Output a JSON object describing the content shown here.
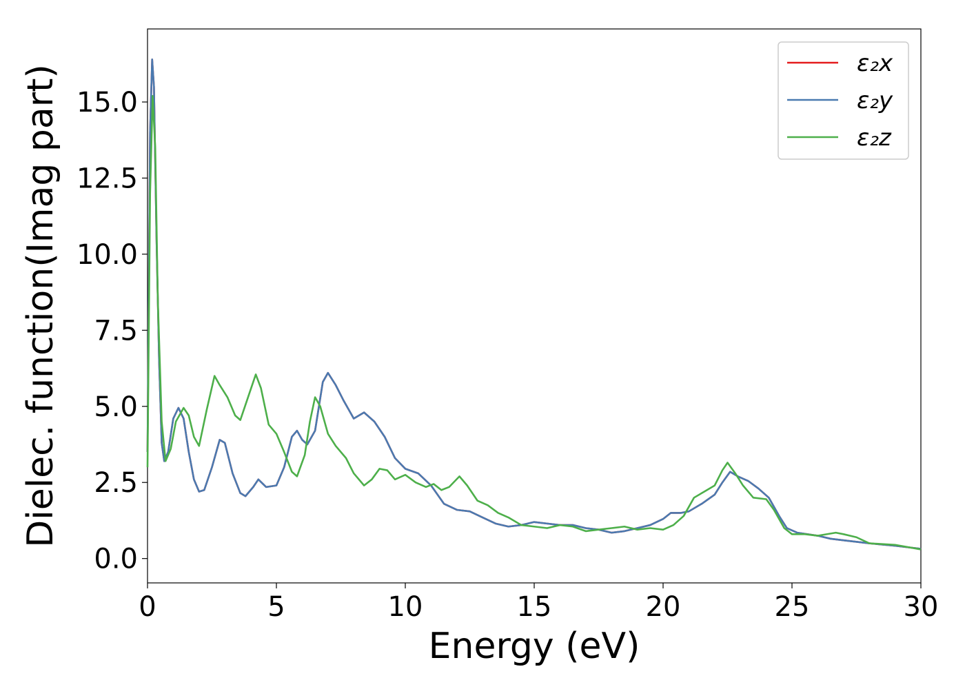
{
  "chart_data": {
    "type": "line",
    "title": "",
    "xlabel": "Energy (eV)",
    "ylabel": "Dielec. function(Imag part)",
    "xlim": [
      0,
      30
    ],
    "ylim": [
      -0.8,
      17.4
    ],
    "xticks": [
      0,
      5,
      10,
      15,
      20,
      25,
      30
    ],
    "xtick_labels": [
      "0",
      "5",
      "10",
      "15",
      "20",
      "25",
      "30"
    ],
    "yticks": [
      0.0,
      2.5,
      5.0,
      7.5,
      10.0,
      12.5,
      15.0
    ],
    "ytick_labels": [
      "0.0",
      "2.5",
      "5.0",
      "7.5",
      "10.0",
      "12.5",
      "15.0"
    ],
    "grid": false,
    "legend_position": "top-right",
    "series": [
      {
        "name": "ε₂x",
        "color": "#e41a1c",
        "points": [
          [
            0.0,
            3.5
          ],
          [
            0.1,
            14.0
          ],
          [
            0.18,
            16.4
          ],
          [
            0.25,
            15.5
          ],
          [
            0.35,
            10.5
          ],
          [
            0.45,
            6.5
          ],
          [
            0.55,
            3.8
          ],
          [
            0.65,
            3.2
          ],
          [
            0.8,
            3.5
          ],
          [
            1.0,
            4.6
          ],
          [
            1.2,
            4.95
          ],
          [
            1.4,
            4.6
          ],
          [
            1.6,
            3.5
          ],
          [
            1.8,
            2.6
          ],
          [
            2.0,
            2.2
          ],
          [
            2.2,
            2.25
          ],
          [
            2.5,
            3.0
          ],
          [
            2.8,
            3.9
          ],
          [
            3.0,
            3.8
          ],
          [
            3.3,
            2.8
          ],
          [
            3.6,
            2.15
          ],
          [
            3.8,
            2.05
          ],
          [
            4.1,
            2.35
          ],
          [
            4.3,
            2.6
          ],
          [
            4.6,
            2.35
          ],
          [
            5.0,
            2.4
          ],
          [
            5.3,
            3.0
          ],
          [
            5.6,
            4.0
          ],
          [
            5.8,
            4.2
          ],
          [
            6.0,
            3.9
          ],
          [
            6.2,
            3.75
          ],
          [
            6.5,
            4.2
          ],
          [
            6.8,
            5.8
          ],
          [
            7.0,
            6.1
          ],
          [
            7.3,
            5.7
          ],
          [
            7.6,
            5.2
          ],
          [
            8.0,
            4.6
          ],
          [
            8.4,
            4.8
          ],
          [
            8.8,
            4.5
          ],
          [
            9.2,
            4.0
          ],
          [
            9.6,
            3.3
          ],
          [
            10.0,
            2.95
          ],
          [
            10.5,
            2.8
          ],
          [
            11.0,
            2.4
          ],
          [
            11.5,
            1.8
          ],
          [
            12.0,
            1.6
          ],
          [
            12.5,
            1.55
          ],
          [
            13.0,
            1.35
          ],
          [
            13.5,
            1.15
          ],
          [
            14.0,
            1.05
          ],
          [
            14.5,
            1.1
          ],
          [
            15.0,
            1.2
          ],
          [
            15.5,
            1.15
          ],
          [
            16.0,
            1.1
          ],
          [
            16.5,
            1.1
          ],
          [
            17.0,
            1.0
          ],
          [
            17.5,
            0.95
          ],
          [
            18.0,
            0.85
          ],
          [
            18.5,
            0.9
          ],
          [
            19.0,
            1.0
          ],
          [
            19.5,
            1.1
          ],
          [
            20.0,
            1.3
          ],
          [
            20.3,
            1.5
          ],
          [
            20.7,
            1.5
          ],
          [
            21.0,
            1.55
          ],
          [
            21.5,
            1.8
          ],
          [
            22.0,
            2.1
          ],
          [
            22.3,
            2.5
          ],
          [
            22.6,
            2.85
          ],
          [
            22.9,
            2.7
          ],
          [
            23.3,
            2.55
          ],
          [
            23.7,
            2.3
          ],
          [
            24.1,
            2.0
          ],
          [
            24.5,
            1.4
          ],
          [
            24.8,
            1.0
          ],
          [
            25.2,
            0.85
          ],
          [
            26.0,
            0.75
          ],
          [
            26.5,
            0.65
          ],
          [
            27.0,
            0.6
          ],
          [
            28.0,
            0.5
          ],
          [
            29.0,
            0.42
          ],
          [
            30.0,
            0.32
          ]
        ]
      },
      {
        "name": "ε₂y",
        "color": "#4a7ab0",
        "points": [
          [
            0.0,
            3.5
          ],
          [
            0.1,
            14.0
          ],
          [
            0.18,
            16.4
          ],
          [
            0.25,
            15.5
          ],
          [
            0.35,
            10.5
          ],
          [
            0.45,
            6.5
          ],
          [
            0.55,
            3.8
          ],
          [
            0.65,
            3.2
          ],
          [
            0.8,
            3.5
          ],
          [
            1.0,
            4.6
          ],
          [
            1.2,
            4.95
          ],
          [
            1.4,
            4.6
          ],
          [
            1.6,
            3.5
          ],
          [
            1.8,
            2.6
          ],
          [
            2.0,
            2.2
          ],
          [
            2.2,
            2.25
          ],
          [
            2.5,
            3.0
          ],
          [
            2.8,
            3.9
          ],
          [
            3.0,
            3.8
          ],
          [
            3.3,
            2.8
          ],
          [
            3.6,
            2.15
          ],
          [
            3.8,
            2.05
          ],
          [
            4.1,
            2.35
          ],
          [
            4.3,
            2.6
          ],
          [
            4.6,
            2.35
          ],
          [
            5.0,
            2.4
          ],
          [
            5.3,
            3.0
          ],
          [
            5.6,
            4.0
          ],
          [
            5.8,
            4.2
          ],
          [
            6.0,
            3.9
          ],
          [
            6.2,
            3.75
          ],
          [
            6.5,
            4.2
          ],
          [
            6.8,
            5.8
          ],
          [
            7.0,
            6.1
          ],
          [
            7.3,
            5.7
          ],
          [
            7.6,
            5.2
          ],
          [
            8.0,
            4.6
          ],
          [
            8.4,
            4.8
          ],
          [
            8.8,
            4.5
          ],
          [
            9.2,
            4.0
          ],
          [
            9.6,
            3.3
          ],
          [
            10.0,
            2.95
          ],
          [
            10.5,
            2.8
          ],
          [
            11.0,
            2.4
          ],
          [
            11.5,
            1.8
          ],
          [
            12.0,
            1.6
          ],
          [
            12.5,
            1.55
          ],
          [
            13.0,
            1.35
          ],
          [
            13.5,
            1.15
          ],
          [
            14.0,
            1.05
          ],
          [
            14.5,
            1.1
          ],
          [
            15.0,
            1.2
          ],
          [
            15.5,
            1.15
          ],
          [
            16.0,
            1.1
          ],
          [
            16.5,
            1.1
          ],
          [
            17.0,
            1.0
          ],
          [
            17.5,
            0.95
          ],
          [
            18.0,
            0.85
          ],
          [
            18.5,
            0.9
          ],
          [
            19.0,
            1.0
          ],
          [
            19.5,
            1.1
          ],
          [
            20.0,
            1.3
          ],
          [
            20.3,
            1.5
          ],
          [
            20.7,
            1.5
          ],
          [
            21.0,
            1.55
          ],
          [
            21.5,
            1.8
          ],
          [
            22.0,
            2.1
          ],
          [
            22.3,
            2.5
          ],
          [
            22.6,
            2.85
          ],
          [
            22.9,
            2.7
          ],
          [
            23.3,
            2.55
          ],
          [
            23.7,
            2.3
          ],
          [
            24.1,
            2.0
          ],
          [
            24.5,
            1.4
          ],
          [
            24.8,
            1.0
          ],
          [
            25.2,
            0.85
          ],
          [
            26.0,
            0.75
          ],
          [
            26.5,
            0.65
          ],
          [
            27.0,
            0.6
          ],
          [
            28.0,
            0.5
          ],
          [
            29.0,
            0.42
          ],
          [
            30.0,
            0.32
          ]
        ]
      },
      {
        "name": "ε₂z",
        "color": "#4daf4a",
        "points": [
          [
            0.0,
            3.0
          ],
          [
            0.1,
            12.0
          ],
          [
            0.2,
            15.2
          ],
          [
            0.3,
            13.5
          ],
          [
            0.4,
            8.5
          ],
          [
            0.55,
            4.5
          ],
          [
            0.7,
            3.2
          ],
          [
            0.9,
            3.6
          ],
          [
            1.1,
            4.5
          ],
          [
            1.4,
            4.95
          ],
          [
            1.6,
            4.7
          ],
          [
            1.8,
            4.0
          ],
          [
            2.0,
            3.7
          ],
          [
            2.3,
            4.9
          ],
          [
            2.6,
            6.0
          ],
          [
            2.8,
            5.7
          ],
          [
            3.1,
            5.3
          ],
          [
            3.4,
            4.7
          ],
          [
            3.6,
            4.55
          ],
          [
            3.9,
            5.3
          ],
          [
            4.2,
            6.05
          ],
          [
            4.4,
            5.6
          ],
          [
            4.7,
            4.4
          ],
          [
            5.0,
            4.1
          ],
          [
            5.3,
            3.5
          ],
          [
            5.6,
            2.85
          ],
          [
            5.8,
            2.7
          ],
          [
            6.1,
            3.4
          ],
          [
            6.3,
            4.5
          ],
          [
            6.5,
            5.3
          ],
          [
            6.7,
            5.0
          ],
          [
            7.0,
            4.1
          ],
          [
            7.3,
            3.7
          ],
          [
            7.7,
            3.3
          ],
          [
            8.0,
            2.8
          ],
          [
            8.4,
            2.4
          ],
          [
            8.7,
            2.6
          ],
          [
            9.0,
            2.95
          ],
          [
            9.3,
            2.9
          ],
          [
            9.6,
            2.6
          ],
          [
            10.0,
            2.75
          ],
          [
            10.4,
            2.5
          ],
          [
            10.8,
            2.35
          ],
          [
            11.1,
            2.45
          ],
          [
            11.4,
            2.25
          ],
          [
            11.7,
            2.35
          ],
          [
            12.1,
            2.7
          ],
          [
            12.4,
            2.4
          ],
          [
            12.8,
            1.9
          ],
          [
            13.2,
            1.75
          ],
          [
            13.6,
            1.5
          ],
          [
            14.0,
            1.35
          ],
          [
            14.5,
            1.1
          ],
          [
            15.0,
            1.05
          ],
          [
            15.5,
            1.0
          ],
          [
            16.0,
            1.1
          ],
          [
            16.5,
            1.05
          ],
          [
            17.0,
            0.9
          ],
          [
            17.5,
            0.95
          ],
          [
            18.0,
            1.0
          ],
          [
            18.5,
            1.05
          ],
          [
            19.0,
            0.95
          ],
          [
            19.5,
            1.0
          ],
          [
            20.0,
            0.95
          ],
          [
            20.4,
            1.1
          ],
          [
            20.8,
            1.4
          ],
          [
            21.2,
            2.0
          ],
          [
            21.6,
            2.2
          ],
          [
            22.0,
            2.4
          ],
          [
            22.3,
            2.9
          ],
          [
            22.5,
            3.15
          ],
          [
            22.8,
            2.8
          ],
          [
            23.1,
            2.4
          ],
          [
            23.5,
            2.0
          ],
          [
            24.0,
            1.95
          ],
          [
            24.3,
            1.6
          ],
          [
            24.7,
            1.0
          ],
          [
            25.0,
            0.8
          ],
          [
            25.5,
            0.8
          ],
          [
            26.0,
            0.75
          ],
          [
            26.7,
            0.85
          ],
          [
            27.0,
            0.8
          ],
          [
            27.5,
            0.7
          ],
          [
            28.0,
            0.5
          ],
          [
            29.0,
            0.45
          ],
          [
            30.0,
            0.3
          ]
        ]
      }
    ]
  }
}
